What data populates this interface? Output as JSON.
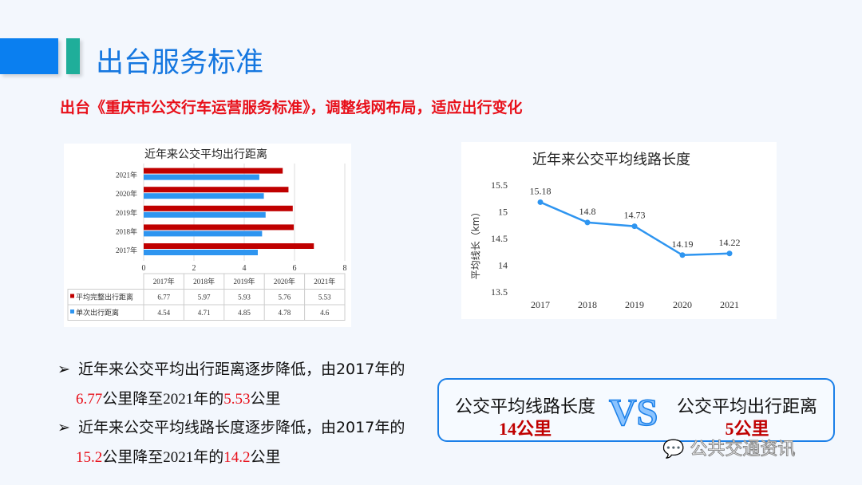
{
  "header": {
    "title": "出台服务标准",
    "subtitle": "出台《重庆市公交行车运营服务标准》，调整线网布局，适应出行变化"
  },
  "colors": {
    "accent": "#0a7ff0",
    "teal": "#1fae9a",
    "red": "#c00000",
    "blue_series": "#2e95f0"
  },
  "chart_data": [
    {
      "type": "bar",
      "orientation": "horizontal",
      "title": "近年来公交平均出行距离",
      "categories": [
        "2017年",
        "2018年",
        "2019年",
        "2020年",
        "2021年"
      ],
      "series": [
        {
          "name": "平均完整出行距离",
          "color": "#c00000",
          "values": [
            6.77,
            5.97,
            5.93,
            5.76,
            5.53
          ]
        },
        {
          "name": "单次出行距离",
          "color": "#2e95f0",
          "values": [
            4.54,
            4.71,
            4.85,
            4.78,
            4.6
          ]
        }
      ],
      "xlim": [
        0,
        8
      ],
      "xticks": [
        "0",
        "2",
        "4",
        "6",
        "8"
      ],
      "data_table": true
    },
    {
      "type": "line",
      "title": "近年来公交平均线路长度",
      "ylabel": "平均线长（km）",
      "x": [
        "2017",
        "2018",
        "2019",
        "2020",
        "2021"
      ],
      "values": [
        15.18,
        14.8,
        14.73,
        14.19,
        14.22
      ],
      "labels": [
        "15.18",
        "14.8",
        "14.73",
        "14.19",
        "14.22"
      ],
      "ylim": [
        13.5,
        15.5
      ],
      "yticks": [
        "15.5",
        "15",
        "14.5",
        "14",
        "13.5"
      ]
    }
  ],
  "bullets": [
    {
      "line1": "近年来公交平均出行距离逐步降低，由2017年的",
      "v1": "6.77",
      "t1": "公里降至2021年的",
      "v2": "5.53",
      "t2": "公里"
    },
    {
      "line1": "近年来公交平均线路长度逐步降低，由2017年的",
      "v1": "15.2",
      "t1": "公里降至2021年的",
      "v2": "14.2",
      "t2": "公里"
    }
  ],
  "bullet_marker": "➢",
  "compare": {
    "left_label": "公交平均线路长度",
    "left_value": "14公里",
    "vs": "VS",
    "right_label": "公交平均出行距离",
    "right_value": "5公里"
  },
  "watermark": "公共交通资讯"
}
